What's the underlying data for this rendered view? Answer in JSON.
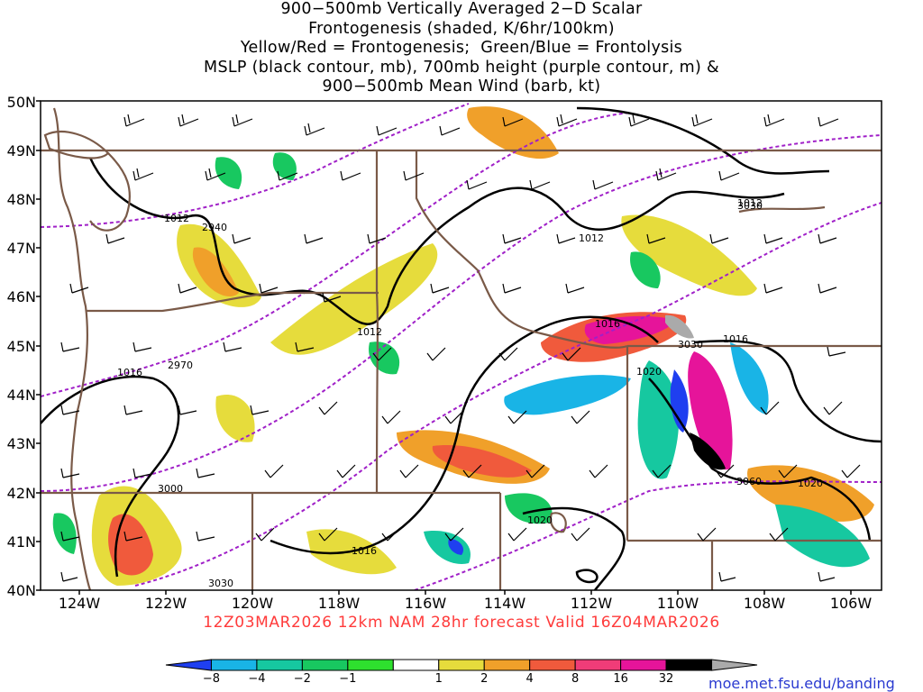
{
  "title": {
    "line1": "900−500mb Vertically Averaged 2−D Scalar",
    "line2": "Frontogenesis (shaded, K/6hr/100km)",
    "line3": "Yellow/Red = Frontogenesis;  Green/Blue = Frontolysis",
    "line4": "MSLP (black contour, mb), 700mb height (purple contour, m) &",
    "line5": "900−500mb Mean Wind (barb, kt)"
  },
  "lat_labels": [
    "50N",
    "49N",
    "48N",
    "47N",
    "46N",
    "45N",
    "44N",
    "43N",
    "42N",
    "41N",
    "40N"
  ],
  "lon_labels": [
    "124W",
    "122W",
    "120W",
    "118W",
    "116W",
    "114W",
    "112W",
    "110W",
    "108W",
    "106W"
  ],
  "valid_line": "12Z03MAR2026 12km NAM 28hr forecast Valid 16Z04MAR2026",
  "colorbar": {
    "ticks": [
      "−8",
      "−4",
      "−2",
      "−1",
      "1",
      "2",
      "4",
      "8",
      "16",
      "32"
    ],
    "colors": [
      "#1f3ff0",
      "#19b4e6",
      "#16c8a0",
      "#18c860",
      "#2ee02e",
      "#ffffff",
      "#e6dc3c",
      "#f0a02a",
      "#f05a3c",
      "#f03c78",
      "#e6149a",
      "#000000",
      "#aaaaaa"
    ]
  },
  "credit": "moe.met.fsu.edu/banding",
  "contour_labels": {
    "mslp": [
      "1012",
      "1012",
      "1012",
      "1016",
      "1016",
      "1016",
      "1016",
      "1020",
      "1020",
      "1020",
      "1012"
    ],
    "heights": [
      "2940",
      "2970",
      "3000",
      "3030",
      "3030",
      "3060",
      "3030"
    ]
  },
  "colors": {
    "mslp": "#000000",
    "height": "#a020c8",
    "borders": "#7a5a48",
    "valid_text": "#ff3b3b"
  }
}
